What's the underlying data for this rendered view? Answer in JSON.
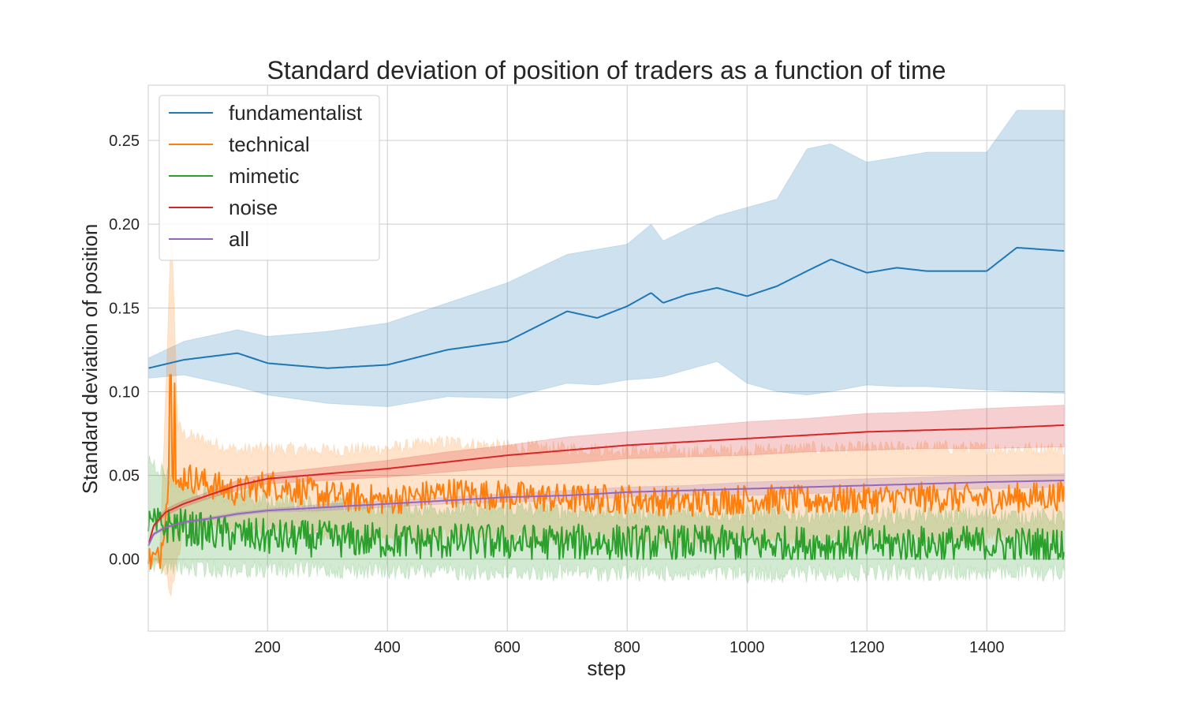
{
  "chart_data": {
    "type": "line",
    "title": "Standard deviation of position of traders as a function of time",
    "xlabel": "step",
    "ylabel": "Standard deviation of position",
    "xlim": [
      1,
      1530
    ],
    "ylim": [
      -0.043,
      0.283
    ],
    "xticks": [
      200,
      400,
      600,
      800,
      1000,
      1200,
      1400
    ],
    "xtick_labels": [
      "200",
      "400",
      "600",
      "800",
      "1000",
      "1200",
      "1400"
    ],
    "yticks": [
      0.0,
      0.05,
      0.1,
      0.15,
      0.2,
      0.25
    ],
    "ytick_labels": [
      "0.00",
      "0.05",
      "0.10",
      "0.15",
      "0.20",
      "0.25"
    ],
    "grid": true,
    "legend_position": "top-left",
    "band": "shaded area around each line",
    "series": [
      {
        "name": "fundamentalist",
        "color": "#1f77b4",
        "x": [
          1,
          60,
          150,
          200,
          300,
          400,
          500,
          600,
          700,
          750,
          800,
          840,
          860,
          900,
          950,
          1000,
          1050,
          1100,
          1140,
          1200,
          1250,
          1300,
          1400,
          1450,
          1530
        ],
        "y": [
          0.114,
          0.119,
          0.123,
          0.117,
          0.114,
          0.116,
          0.125,
          0.13,
          0.148,
          0.144,
          0.151,
          0.159,
          0.153,
          0.158,
          0.162,
          0.157,
          0.163,
          0.172,
          0.179,
          0.171,
          0.174,
          0.172,
          0.172,
          0.186,
          0.184
        ],
        "band_upper": [
          0.12,
          0.13,
          0.137,
          0.133,
          0.136,
          0.141,
          0.153,
          0.165,
          0.182,
          0.185,
          0.188,
          0.2,
          0.19,
          0.197,
          0.205,
          0.21,
          0.215,
          0.245,
          0.248,
          0.237,
          0.24,
          0.243,
          0.243,
          0.268,
          0.268
        ],
        "band_lower": [
          0.108,
          0.11,
          0.103,
          0.098,
          0.093,
          0.091,
          0.097,
          0.096,
          0.105,
          0.104,
          0.107,
          0.108,
          0.109,
          0.113,
          0.118,
          0.105,
          0.1,
          0.098,
          0.1,
          0.104,
          0.103,
          0.103,
          0.101,
          0.1,
          0.099
        ]
      },
      {
        "name": "technical",
        "color": "#ff7f0e",
        "x": [
          1,
          20,
          40,
          50,
          60,
          100,
          150,
          200,
          300,
          400,
          500,
          600,
          700,
          800,
          900,
          1000,
          1100,
          1200,
          1300,
          1400,
          1530
        ],
        "y": [
          0.0,
          0.0,
          0.06,
          0.04,
          0.05,
          0.045,
          0.04,
          0.045,
          0.038,
          0.035,
          0.04,
          0.038,
          0.036,
          0.036,
          0.034,
          0.036,
          0.035,
          0.036,
          0.037,
          0.036,
          0.038
        ],
        "band_upper": [
          0.0,
          0.0,
          0.2,
          0.08,
          0.075,
          0.07,
          0.065,
          0.066,
          0.065,
          0.066,
          0.07,
          0.067,
          0.066,
          0.065,
          0.064,
          0.065,
          0.066,
          0.066,
          0.067,
          0.066,
          0.066
        ],
        "band_lower": [
          0.0,
          0.0,
          -0.02,
          0.0,
          0.02,
          0.02,
          0.018,
          0.02,
          0.015,
          0.012,
          0.015,
          0.013,
          0.012,
          0.012,
          0.01,
          0.012,
          0.011,
          0.012,
          0.013,
          0.012,
          0.014
        ],
        "noise": 0.009,
        "spikes": [
          [
            38,
            0.11
          ],
          [
            45,
            0.105
          ]
        ]
      },
      {
        "name": "mimetic",
        "color": "#2ca02c",
        "x": [
          1,
          50,
          100,
          200,
          400,
          600,
          800,
          1000,
          1200,
          1400,
          1530
        ],
        "y": [
          0.02,
          0.02,
          0.016,
          0.013,
          0.011,
          0.01,
          0.01,
          0.009,
          0.009,
          0.009,
          0.008
        ],
        "band_upper": [
          0.06,
          0.045,
          0.04,
          0.035,
          0.03,
          0.03,
          0.028,
          0.027,
          0.026,
          0.026,
          0.025
        ],
        "band_lower": [
          -0.005,
          -0.005,
          -0.006,
          -0.006,
          -0.007,
          -0.008,
          -0.008,
          -0.009,
          -0.008,
          -0.008,
          -0.008
        ],
        "noise": 0.011,
        "clip_min": 0
      },
      {
        "name": "noise",
        "color": "#d62728",
        "x": [
          1,
          10,
          30,
          60,
          100,
          150,
          200,
          300,
          400,
          500,
          600,
          700,
          800,
          900,
          1000,
          1100,
          1200,
          1300,
          1400,
          1530
        ],
        "y": [
          0.008,
          0.02,
          0.028,
          0.033,
          0.038,
          0.044,
          0.048,
          0.051,
          0.054,
          0.058,
          0.062,
          0.065,
          0.068,
          0.07,
          0.072,
          0.074,
          0.076,
          0.077,
          0.078,
          0.08
        ],
        "band_upper": [
          0.009,
          0.021,
          0.03,
          0.035,
          0.04,
          0.047,
          0.051,
          0.055,
          0.059,
          0.064,
          0.068,
          0.073,
          0.076,
          0.079,
          0.082,
          0.084,
          0.087,
          0.088,
          0.09,
          0.092
        ],
        "band_lower": [
          0.007,
          0.019,
          0.026,
          0.031,
          0.036,
          0.041,
          0.045,
          0.047,
          0.049,
          0.052,
          0.055,
          0.057,
          0.06,
          0.061,
          0.062,
          0.064,
          0.065,
          0.066,
          0.066,
          0.067
        ]
      },
      {
        "name": "all",
        "color": "#9467bd",
        "x": [
          1,
          10,
          30,
          60,
          100,
          150,
          200,
          300,
          400,
          500,
          600,
          700,
          800,
          900,
          1000,
          1100,
          1200,
          1300,
          1400,
          1530
        ],
        "y": [
          0.008,
          0.015,
          0.019,
          0.022,
          0.024,
          0.027,
          0.029,
          0.031,
          0.033,
          0.035,
          0.037,
          0.038,
          0.04,
          0.041,
          0.042,
          0.043,
          0.044,
          0.045,
          0.046,
          0.047
        ],
        "band_upper": [
          0.009,
          0.016,
          0.02,
          0.023,
          0.025,
          0.028,
          0.03,
          0.033,
          0.035,
          0.037,
          0.039,
          0.041,
          0.043,
          0.044,
          0.046,
          0.047,
          0.048,
          0.049,
          0.05,
          0.051
        ],
        "band_lower": [
          0.007,
          0.014,
          0.018,
          0.021,
          0.023,
          0.026,
          0.028,
          0.029,
          0.031,
          0.033,
          0.034,
          0.035,
          0.037,
          0.038,
          0.038,
          0.039,
          0.04,
          0.041,
          0.042,
          0.043
        ]
      }
    ]
  }
}
